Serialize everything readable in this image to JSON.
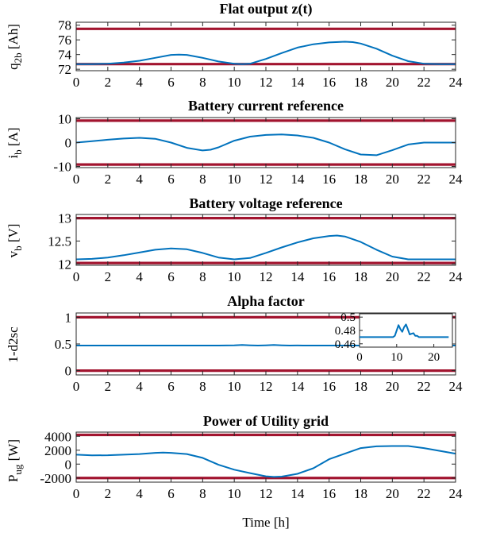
{
  "colors": {
    "series": "#0072BD",
    "bound": "#A2142F",
    "axes": "#262626"
  },
  "figure": {
    "xlabel": "Time [h]"
  },
  "chart_data": [
    {
      "type": "line",
      "title": "Flat output z(t)",
      "ylabel": "q2b [Ah]",
      "ylabel_main": "q",
      "ylabel_sub": "2b",
      "ylabel_tail": " [Ah]",
      "xlim": [
        0,
        24
      ],
      "ylim": [
        71.8,
        78.4
      ],
      "xticks": [
        "0",
        "2",
        "4",
        "6",
        "8",
        "10",
        "12",
        "14",
        "16",
        "18",
        "20",
        "22",
        "24"
      ],
      "yticks": [
        72,
        74,
        76,
        78
      ],
      "ytick_labels": [
        "72",
        "74",
        "76",
        "78"
      ],
      "bounds": [
        77.5,
        72.7
      ],
      "series": [
        {
          "x": [
            0,
            1,
            2,
            3,
            4,
            5,
            6,
            6.5,
            7,
            8,
            9,
            10,
            10.5,
            11,
            12,
            13,
            14,
            15,
            16,
            17,
            17.5,
            18,
            19,
            20,
            21,
            22,
            23,
            24
          ],
          "y": [
            72.7,
            72.7,
            72.75,
            72.9,
            73.15,
            73.55,
            73.95,
            74.0,
            73.95,
            73.55,
            73.05,
            72.75,
            72.7,
            72.75,
            73.4,
            74.2,
            74.95,
            75.4,
            75.65,
            75.75,
            75.7,
            75.5,
            74.8,
            73.85,
            73.1,
            72.75,
            72.7,
            72.7
          ]
        }
      ]
    },
    {
      "type": "line",
      "title": "Battery current reference",
      "ylabel": "ib [A]",
      "ylabel_main": "i",
      "ylabel_sub": "b",
      "ylabel_tail": " [A]",
      "xlim": [
        0,
        24
      ],
      "ylim": [
        -10.5,
        10.5
      ],
      "xticks": [
        "0",
        "2",
        "4",
        "6",
        "8",
        "10",
        "12",
        "14",
        "16",
        "18",
        "20",
        "22",
        "24"
      ],
      "yticks": [
        -10,
        0,
        10
      ],
      "ytick_labels": [
        "-10",
        "0",
        "10"
      ],
      "bounds": [
        9.2,
        -9.2
      ],
      "series": [
        {
          "x": [
            0,
            1,
            2,
            3,
            4,
            5,
            6,
            7,
            8,
            8.5,
            9,
            10,
            11,
            12,
            13,
            14,
            15,
            16,
            17,
            18,
            19,
            20,
            21,
            22,
            23,
            24
          ],
          "y": [
            0,
            0.6,
            1.2,
            1.7,
            2.0,
            1.6,
            0,
            -2.2,
            -3.3,
            -3.0,
            -2.0,
            0.8,
            2.5,
            3.2,
            3.4,
            3.0,
            2.0,
            0,
            -2.8,
            -5.0,
            -5.3,
            -3.2,
            -0.8,
            0,
            0,
            0
          ]
        }
      ]
    },
    {
      "type": "line",
      "title": "Battery voltage reference",
      "ylabel": "vb [V]",
      "ylabel_main": "v",
      "ylabel_sub": "b",
      "ylabel_tail": " [V]",
      "xlim": [
        0,
        24
      ],
      "ylim": [
        11.97,
        13.08
      ],
      "xticks": [
        "0",
        "2",
        "4",
        "6",
        "8",
        "10",
        "12",
        "14",
        "16",
        "18",
        "20",
        "22",
        "24"
      ],
      "yticks": [
        12,
        12.5,
        13
      ],
      "ytick_labels": [
        "12",
        "12.5",
        "13"
      ],
      "bounds": [
        13.0,
        12.02
      ],
      "series": [
        {
          "x": [
            0,
            1,
            2,
            3,
            4,
            5,
            6,
            7,
            8,
            9,
            10,
            11,
            12,
            13,
            14,
            15,
            16,
            16.5,
            17,
            18,
            19,
            20,
            21,
            22,
            23,
            24
          ],
          "y": [
            12.1,
            12.11,
            12.14,
            12.19,
            12.25,
            12.31,
            12.34,
            12.32,
            12.24,
            12.14,
            12.1,
            12.13,
            12.24,
            12.36,
            12.47,
            12.56,
            12.61,
            12.62,
            12.6,
            12.48,
            12.31,
            12.16,
            12.1,
            12.1,
            12.1,
            12.1
          ]
        }
      ]
    },
    {
      "type": "line",
      "title": "Alpha factor",
      "ylabel": "1-d2sc",
      "xlim": [
        0,
        24
      ],
      "ylim": [
        -0.08,
        1.08
      ],
      "xticks": [
        "0",
        "2",
        "4",
        "6",
        "8",
        "10",
        "12",
        "14",
        "16",
        "18",
        "20",
        "22",
        "24"
      ],
      "yticks": [
        0,
        0.5,
        1
      ],
      "ytick_labels": [
        "0",
        "0.5",
        "1"
      ],
      "bounds": [
        1.0,
        0.0
      ],
      "series": [
        {
          "x": [
            0,
            2,
            4,
            6,
            8,
            9,
            10,
            10.5,
            11,
            11.5,
            12,
            12.5,
            13,
            13.5,
            14,
            14.5,
            15,
            16,
            18,
            20,
            22,
            24
          ],
          "y": [
            0.47,
            0.47,
            0.47,
            0.47,
            0.47,
            0.47,
            0.475,
            0.48,
            0.475,
            0.47,
            0.475,
            0.48,
            0.475,
            0.47,
            0.472,
            0.47,
            0.47,
            0.47,
            0.47,
            0.47,
            0.47,
            0.47
          ]
        }
      ],
      "inset": {
        "xlim": [
          0,
          25
        ],
        "ylim": [
          0.455,
          0.505
        ],
        "xticks": [
          0,
          10,
          20
        ],
        "xtick_labels": [
          "0",
          "10",
          "20"
        ],
        "yticks": [
          0.46,
          0.48,
          0.5
        ],
        "ytick_labels": [
          "0.46",
          "0.48",
          "0.5"
        ],
        "series": {
          "x": [
            0,
            2,
            4,
            6,
            8,
            9,
            9.5,
            10,
            10.5,
            11,
            11.5,
            12,
            12.5,
            13,
            13.5,
            14,
            14.5,
            15,
            15.5,
            16,
            17,
            18,
            20,
            22,
            24
          ],
          "y": [
            0.47,
            0.47,
            0.47,
            0.47,
            0.47,
            0.47,
            0.472,
            0.48,
            0.488,
            0.482,
            0.478,
            0.485,
            0.489,
            0.482,
            0.474,
            0.475,
            0.476,
            0.472,
            0.472,
            0.47,
            0.47,
            0.47,
            0.47,
            0.47,
            0.47
          ]
        }
      }
    },
    {
      "type": "line",
      "title": "Power of Utility grid",
      "ylabel": "Pug [W]",
      "ylabel_main": "P",
      "ylabel_sub": "ug",
      "ylabel_tail": " [W]",
      "xlim": [
        0,
        24
      ],
      "ylim": [
        -2600,
        4600
      ],
      "xticks": [
        "0",
        "2",
        "4",
        "6",
        "8",
        "10",
        "12",
        "14",
        "16",
        "18",
        "20",
        "22",
        "24"
      ],
      "yticks": [
        -2000,
        0,
        2000,
        4000
      ],
      "ytick_labels": [
        "-2000",
        "0",
        "2000",
        "4000"
      ],
      "bounds": [
        4200,
        -2000
      ],
      "series": [
        {
          "x": [
            0,
            1,
            2,
            3,
            4,
            5,
            5.5,
            6,
            7,
            8,
            9,
            10,
            11,
            12,
            12.5,
            13,
            14,
            15,
            16,
            17,
            18,
            19,
            20,
            21,
            22,
            23,
            24
          ],
          "y": [
            1350,
            1250,
            1270,
            1350,
            1450,
            1620,
            1650,
            1620,
            1450,
            900,
            -100,
            -800,
            -1300,
            -1750,
            -1850,
            -1800,
            -1400,
            -600,
            700,
            1500,
            2300,
            2550,
            2600,
            2600,
            2300,
            1900,
            1500
          ]
        }
      ]
    }
  ]
}
